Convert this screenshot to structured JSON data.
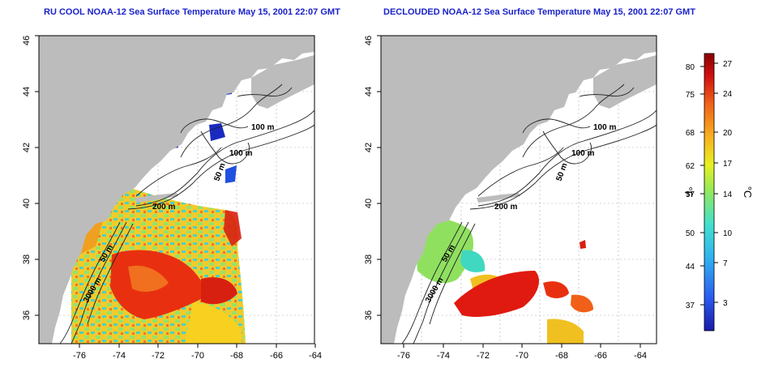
{
  "titles": {
    "left": "RU COOL NOAA-12 Sea Surface Temperature May 15, 2001 22:07 GMT",
    "right": "DECLOUDED NOAA-12 Sea Surface Temperature May 15, 2001 22:07 GMT"
  },
  "axes": {
    "x_ticks": [
      "-76",
      "-74",
      "-72",
      "-70",
      "-68",
      "-66",
      "-64"
    ],
    "y_ticks": [
      "36",
      "38",
      "40",
      "42",
      "44",
      "46"
    ]
  },
  "contour_labels": {
    "c100a": "100 m",
    "c100b": "100 m",
    "c50a": "50 m",
    "c200": "200 m",
    "c50b": "50 m",
    "c3000": "3000 m"
  },
  "colorbar": {
    "fahrenheit_ticks": [
      "80",
      "75",
      "68",
      "62",
      "57",
      "50",
      "44",
      "37"
    ],
    "celsius_ticks": [
      "27",
      "24",
      "20",
      "17",
      "14",
      "10",
      "7",
      "3"
    ],
    "fahrenheit_unit": "°F",
    "celsius_unit": "°C",
    "colors": [
      "#1a1aa8",
      "#2a5cf0",
      "#30b0f0",
      "#40e0d0",
      "#90e860",
      "#e8f020",
      "#f8b020",
      "#f06018",
      "#d01010",
      "#8a0000"
    ]
  },
  "colors": {
    "title": "#1a22c8",
    "land": "#bcbcbc",
    "ocean_nodata": "#ffffff"
  }
}
